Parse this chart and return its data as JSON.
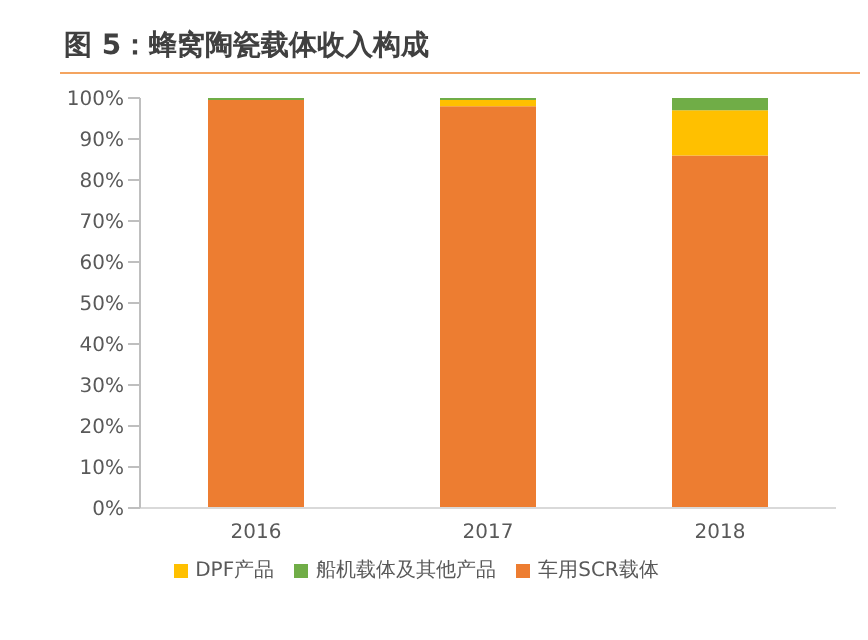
{
  "chart_data": {
    "type": "bar",
    "stacked": true,
    "title": "图 5：蜂窝陶瓷载体收入构成",
    "categories": [
      "2016",
      "2017",
      "2018"
    ],
    "series": [
      {
        "name": "车用SCR载体",
        "color": "#ed7d31",
        "values": [
          99.5,
          98,
          86
        ]
      },
      {
        "name": "DPF产品",
        "color": "#ffc000",
        "values": [
          0,
          1.5,
          11
        ]
      },
      {
        "name": "船机载体及其他产品",
        "color": "#70ad47",
        "values": [
          0.5,
          0.5,
          3
        ]
      }
    ],
    "ylim": [
      0,
      100
    ],
    "yticks": [
      {
        "value": 0,
        "label": "0%"
      },
      {
        "value": 10,
        "label": "10%"
      },
      {
        "value": 20,
        "label": "20%"
      },
      {
        "value": 30,
        "label": "30%"
      },
      {
        "value": 40,
        "label": "40%"
      },
      {
        "value": 50,
        "label": "50%"
      },
      {
        "value": 60,
        "label": "60%"
      },
      {
        "value": 70,
        "label": "70%"
      },
      {
        "value": 80,
        "label": "80%"
      },
      {
        "value": 90,
        "label": "90%"
      },
      {
        "value": 100,
        "label": "100%"
      }
    ],
    "grid": false,
    "legend": "bottom"
  }
}
